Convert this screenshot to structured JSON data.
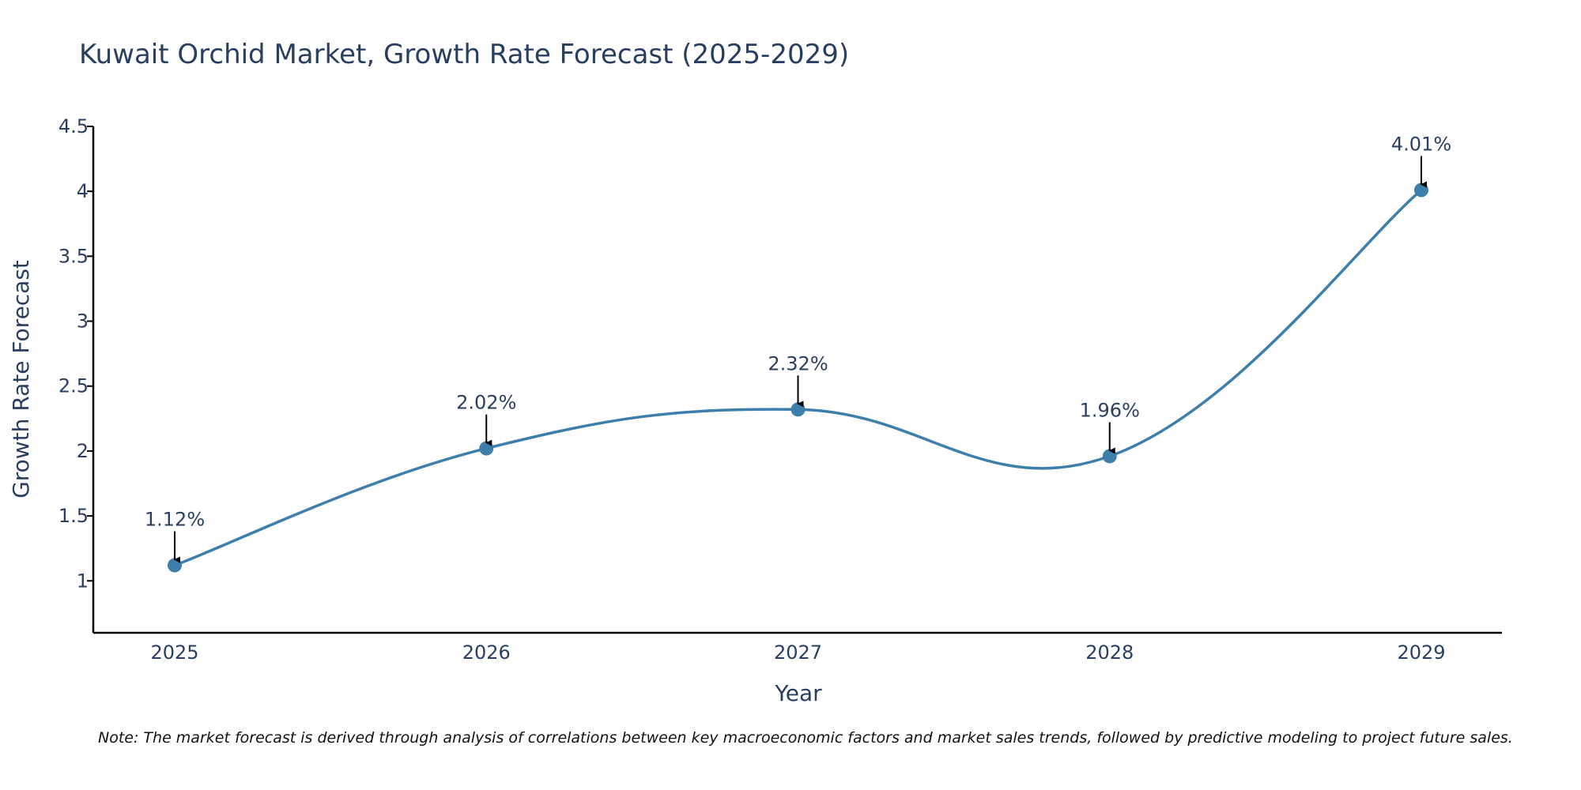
{
  "chart_data": {
    "type": "line",
    "title": "Kuwait Orchid Market, Growth Rate Forecast (2025-2029)",
    "xlabel": "Year",
    "ylabel": "Growth Rate Forecast",
    "categories": [
      "2025",
      "2026",
      "2027",
      "2028",
      "2029"
    ],
    "values": [
      1.12,
      2.02,
      2.32,
      1.96,
      4.01
    ],
    "data_labels": [
      "1.12%",
      "2.02%",
      "2.32%",
      "1.96%",
      "4.01%"
    ],
    "yticks": [
      1,
      1.5,
      2,
      2.5,
      3,
      3.5,
      4,
      4.5
    ],
    "ytick_labels": [
      "1",
      "1.5",
      "2",
      "2.5",
      "3",
      "3.5",
      "4",
      "4.5"
    ],
    "ylim": [
      0.6,
      4.5
    ],
    "grid": false,
    "line_shape": "spline",
    "series_color": "#3d7eab",
    "axis_color": "#000000",
    "arrow_color": "#000000"
  },
  "note": "Note: The market forecast is derived through analysis of correlations between key macroeconomic factors and market sales trends, followed by predictive modeling to project future sales."
}
